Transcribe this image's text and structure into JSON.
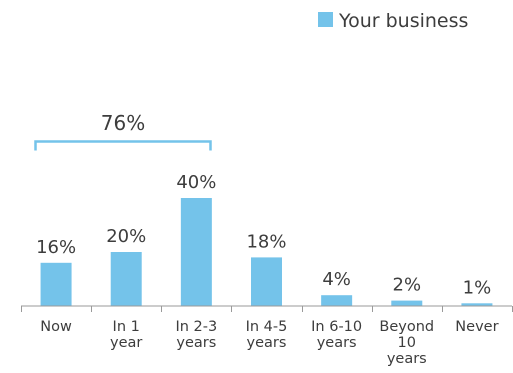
{
  "chart_data": {
    "type": "bar",
    "categories": [
      [
        "Now"
      ],
      [
        "In 1",
        "year"
      ],
      [
        "In 2-3",
        "years"
      ],
      [
        "In 4-5",
        "years"
      ],
      [
        "In 6-10",
        "years"
      ],
      [
        "Beyond",
        "10",
        "years"
      ],
      [
        "Never"
      ]
    ],
    "series": [
      {
        "name": "Your business",
        "values": [
          16,
          20,
          40,
          18,
          4,
          2,
          1
        ],
        "data_labels": [
          "16%",
          "20%",
          "40%",
          "18%",
          "4%",
          "2%",
          "1%"
        ],
        "color": "#74c3ea"
      }
    ],
    "title": "",
    "xlabel": "",
    "ylabel": "",
    "ylim": [
      0,
      40
    ],
    "grid": false,
    "legend": {
      "position": "top-right"
    },
    "annotations": [
      {
        "type": "bracket",
        "text": "76%",
        "from_category": 0,
        "to_category": 2
      }
    ],
    "colors": {
      "bar": "#74c3ea",
      "axis": "#9a9a9a",
      "text": "#3d3d3d"
    }
  }
}
